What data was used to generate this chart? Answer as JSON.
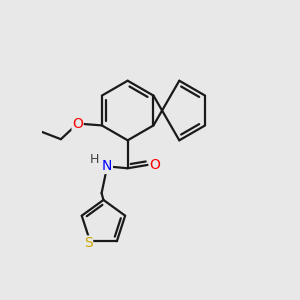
{
  "bg_color": "#e8e8e8",
  "bond_color": "#1a1a1a",
  "bond_width": 1.6,
  "atom_colors": {
    "O": "#ff0000",
    "N": "#0000ff",
    "S": "#ccaa00",
    "H": "#404040",
    "C": "#1a1a1a"
  },
  "font_size": 10,
  "fig_bg": "#e8e8e8",
  "xlim": [
    -0.5,
    5.5
  ],
  "ylim": [
    -1.0,
    5.2
  ]
}
